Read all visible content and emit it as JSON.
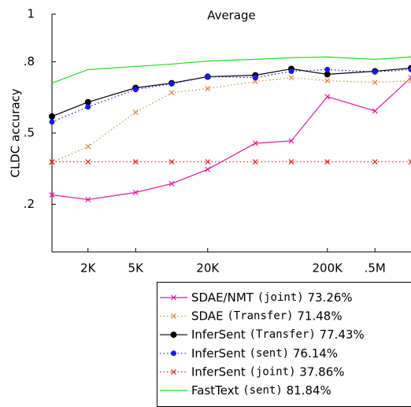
{
  "chart_data": {
    "type": "line",
    "title": "Average",
    "y_label": "CLDC accuracy",
    "x": [
      1000,
      2000,
      5000,
      10000,
      20000,
      50000,
      100000,
      200000,
      500000,
      1000000
    ],
    "x_log": true,
    "xlim": [
      1000,
      1000000
    ],
    "xticks": [
      {
        "value": 2000,
        "label": "2K"
      },
      {
        "value": 5000,
        "label": "5K"
      },
      {
        "value": 20000,
        "label": "20K"
      },
      {
        "value": 200000,
        "label": "200K"
      },
      {
        "value": 500000,
        "label": ".5M"
      }
    ],
    "ylim": [
      0,
      1
    ],
    "yticks": [
      {
        "value": 0.2,
        "label": ".2"
      },
      {
        "value": 0.5,
        "label": ".5"
      },
      {
        "value": 0.8,
        "label": ".8"
      },
      1
    ],
    "series": [
      {
        "name": "SDAE/NMT (joint) 73.26%",
        "color": "#e0199e",
        "marker": "x",
        "dash": "solid",
        "values": [
          0.24,
          0.22,
          0.25,
          0.287,
          0.347,
          0.457,
          0.467,
          0.653,
          0.593,
          0.733
        ]
      },
      {
        "name": "SDAE (Transfer) 71.48%",
        "color": "#d08c3c",
        "marker": "x",
        "dash": "dotted",
        "values": [
          0.377,
          0.443,
          0.587,
          0.67,
          0.687,
          0.717,
          0.733,
          0.72,
          0.713,
          0.72
        ]
      },
      {
        "name": "InferSent (Transfer) 77.43%",
        "color": "#000000",
        "marker": "circle",
        "dash": "solid",
        "values": [
          0.57,
          0.63,
          0.69,
          0.71,
          0.737,
          0.743,
          0.77,
          0.747,
          0.76,
          0.773
        ]
      },
      {
        "name": "InferSent (sent) 76.14%",
        "color": "#1a1ae6",
        "marker": "dot",
        "dash": "dotted",
        "values": [
          0.547,
          0.61,
          0.683,
          0.707,
          0.737,
          0.733,
          0.76,
          0.767,
          0.757,
          0.767
        ]
      },
      {
        "name": "InferSent (joint) 37.86%",
        "color": "#e02020",
        "marker": "x",
        "dash": "dotted",
        "values": [
          0.379,
          0.379,
          0.379,
          0.379,
          0.379,
          0.379,
          0.379,
          0.379,
          0.379,
          0.379
        ]
      },
      {
        "name": "FastText (sent) 81.84%",
        "color": "#22dd22",
        "marker": "none",
        "dash": "solid",
        "values": [
          0.71,
          0.767,
          0.78,
          0.79,
          0.803,
          0.81,
          0.817,
          0.82,
          0.81,
          0.82
        ]
      }
    ]
  }
}
